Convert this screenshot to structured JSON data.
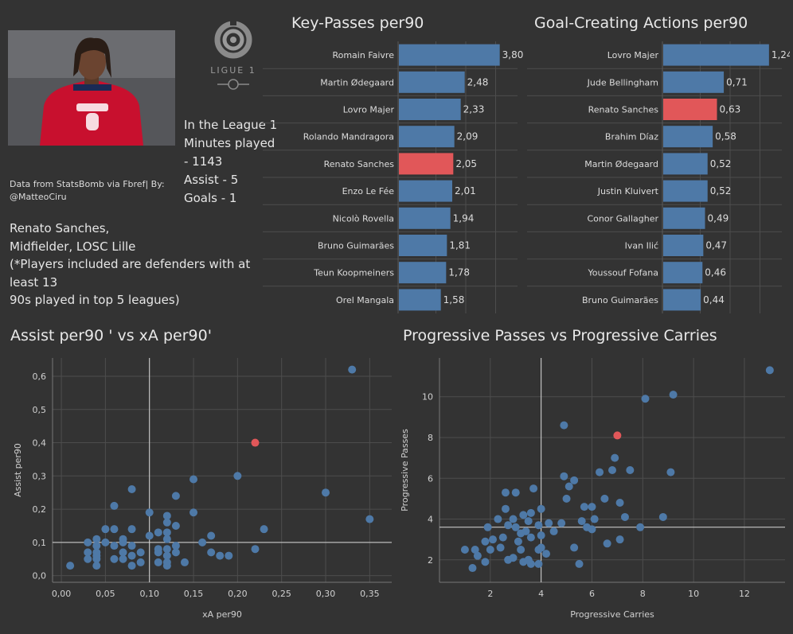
{
  "credit": "Data from StatsBomb via Fbref| By: @MatteoCiru",
  "stats_lines": [
    "In the League 1",
    "Minutes played",
    "- 1143",
    "Assist - 5",
    "Goals - 1"
  ],
  "description_lines": [
    "Renato Sanches,",
    "Midfielder, LOSC Lille",
    "(*Players included are defenders with at least 13",
    "90s played in top 5 leagues)"
  ],
  "logo": {
    "text": "LIGUE 1",
    "icon": "ligue1-logo-icon"
  },
  "colors": {
    "background": "#333333",
    "bar": "#4e79a7",
    "highlight": "#e15759",
    "grid": "#4d4d4d",
    "refline": "#d9d9d9"
  },
  "chart_data": [
    {
      "type": "bar",
      "orientation": "horizontal",
      "title": "Key-Passes per90",
      "categories": [
        "Romain Faivre",
        "Martin Ødegaard",
        "Lovro Majer",
        "Rolando Mandragora",
        "Renato Sanches",
        "Enzo Le Fée",
        "Nicolò Rovella",
        "Bruno Guimarães",
        "Teun Koopmeiners",
        "Orel Mangala"
      ],
      "values": [
        3.8,
        2.48,
        2.33,
        2.09,
        2.05,
        2.01,
        1.94,
        1.81,
        1.78,
        1.58
      ],
      "value_labels": [
        "3,80",
        "2,48",
        "2,33",
        "2,09",
        "2,05",
        "2,01",
        "1,94",
        "1,81",
        "1,78",
        "1,58"
      ],
      "highlight": "Renato Sanches",
      "xlim": [
        0,
        4.5
      ]
    },
    {
      "type": "bar",
      "orientation": "horizontal",
      "title": "Goal-Creating Actions per90",
      "categories": [
        "Lovro Majer",
        "Jude Bellingham",
        "Renato Sanches",
        "Brahim Díaz",
        "Martin Ødegaard",
        "Justin Kluivert",
        "Conor Gallagher",
        "Ivan Ilić",
        "Youssouf Fofana",
        "Bruno Guimarães"
      ],
      "values": [
        1.24,
        0.71,
        0.63,
        0.58,
        0.52,
        0.52,
        0.49,
        0.47,
        0.46,
        0.44
      ],
      "value_labels": [
        "1,24",
        "0,71",
        "0,63",
        "0,58",
        "0,52",
        "0,52",
        "0,49",
        "0,47",
        "0,46",
        "0,44"
      ],
      "highlight": "Renato Sanches",
      "xlim": [
        0,
        1.4
      ]
    },
    {
      "type": "scatter",
      "title": "Assist per90 ' vs xA per90'",
      "xlabel": "xA per90",
      "ylabel": "Assist per90",
      "xlim": [
        -0.01,
        0.375
      ],
      "ylim": [
        -0.02,
        0.655
      ],
      "xticks": [
        0,
        0.05,
        0.1,
        0.15,
        0.2,
        0.25,
        0.3,
        0.35
      ],
      "xtick_labels": [
        "0,00",
        "0,05",
        "0,10",
        "0,15",
        "0,20",
        "0,25",
        "0,30",
        "0,35"
      ],
      "yticks": [
        0,
        0.1,
        0.2,
        0.3,
        0.4,
        0.5,
        0.6
      ],
      "ytick_labels": [
        "0,0",
        "0,1",
        "0,2",
        "0,3",
        "0,4",
        "0,5",
        "0,6"
      ],
      "ref_x": 0.1,
      "ref_y": 0.1,
      "points": [
        [
          0.33,
          0.62
        ],
        [
          0.2,
          0.3
        ],
        [
          0.3,
          0.25
        ],
        [
          0.35,
          0.17
        ],
        [
          0.15,
          0.29
        ],
        [
          0.08,
          0.26
        ],
        [
          0.13,
          0.24
        ],
        [
          0.06,
          0.21
        ],
        [
          0.1,
          0.19
        ],
        [
          0.15,
          0.19
        ],
        [
          0.12,
          0.18
        ],
        [
          0.12,
          0.16
        ],
        [
          0.13,
          0.15
        ],
        [
          0.05,
          0.14
        ],
        [
          0.06,
          0.14
        ],
        [
          0.08,
          0.14
        ],
        [
          0.23,
          0.14
        ],
        [
          0.11,
          0.13
        ],
        [
          0.12,
          0.13
        ],
        [
          0.1,
          0.12
        ],
        [
          0.17,
          0.12
        ],
        [
          0.04,
          0.11
        ],
        [
          0.07,
          0.11
        ],
        [
          0.12,
          0.11
        ],
        [
          0.03,
          0.1
        ],
        [
          0.05,
          0.1
        ],
        [
          0.07,
          0.1
        ],
        [
          0.16,
          0.1
        ],
        [
          0.13,
          0.09
        ],
        [
          0.04,
          0.09
        ],
        [
          0.06,
          0.09
        ],
        [
          0.08,
          0.09
        ],
        [
          0.11,
          0.08
        ],
        [
          0.12,
          0.08
        ],
        [
          0.22,
          0.08
        ],
        [
          0.03,
          0.07
        ],
        [
          0.04,
          0.07
        ],
        [
          0.07,
          0.07
        ],
        [
          0.09,
          0.07
        ],
        [
          0.11,
          0.07
        ],
        [
          0.13,
          0.07
        ],
        [
          0.17,
          0.07
        ],
        [
          0.04,
          0.06
        ],
        [
          0.08,
          0.06
        ],
        [
          0.12,
          0.06
        ],
        [
          0.18,
          0.06
        ],
        [
          0.19,
          0.06
        ],
        [
          0.03,
          0.05
        ],
        [
          0.04,
          0.05
        ],
        [
          0.06,
          0.05
        ],
        [
          0.07,
          0.05
        ],
        [
          0.09,
          0.04
        ],
        [
          0.11,
          0.04
        ],
        [
          0.12,
          0.04
        ],
        [
          0.14,
          0.04
        ],
        [
          0.04,
          0.03
        ],
        [
          0.08,
          0.03
        ],
        [
          0.01,
          0.03
        ],
        [
          0.12,
          0.03
        ]
      ],
      "highlight_point": [
        0.22,
        0.4
      ]
    },
    {
      "type": "scatter",
      "title": "Progressive Passes vs Progressive Carries",
      "xlabel": "Progressive Carries",
      "ylabel": "Progressive Passes",
      "xlim": [
        0,
        13.6
      ],
      "ylim": [
        0.9,
        11.9
      ],
      "xticks": [
        2,
        4,
        6,
        8,
        10,
        12
      ],
      "xtick_labels": [
        "2",
        "4",
        "6",
        "8",
        "10",
        "12"
      ],
      "yticks": [
        2,
        4,
        6,
        8,
        10
      ],
      "ytick_labels": [
        "2",
        "4",
        "6",
        "8",
        "10"
      ],
      "ref_x": 4,
      "ref_y": 3.6,
      "points": [
        [
          13.0,
          11.3
        ],
        [
          9.2,
          10.1
        ],
        [
          8.1,
          9.9
        ],
        [
          4.9,
          8.6
        ],
        [
          6.9,
          7.0
        ],
        [
          7.5,
          6.4
        ],
        [
          9.1,
          6.3
        ],
        [
          6.3,
          6.3
        ],
        [
          6.8,
          6.4
        ],
        [
          4.9,
          6.1
        ],
        [
          5.3,
          5.9
        ],
        [
          5.1,
          5.6
        ],
        [
          3.7,
          5.5
        ],
        [
          2.6,
          5.3
        ],
        [
          3.0,
          5.3
        ],
        [
          5.0,
          5.0
        ],
        [
          6.5,
          5.0
        ],
        [
          7.1,
          4.8
        ],
        [
          5.7,
          4.6
        ],
        [
          6.0,
          4.6
        ],
        [
          2.6,
          4.5
        ],
        [
          4.0,
          4.5
        ],
        [
          3.3,
          4.2
        ],
        [
          3.6,
          4.3
        ],
        [
          7.3,
          4.1
        ],
        [
          8.8,
          4.1
        ],
        [
          2.3,
          4.0
        ],
        [
          6.1,
          4.0
        ],
        [
          2.9,
          4.0
        ],
        [
          3.5,
          3.9
        ],
        [
          4.3,
          3.8
        ],
        [
          5.6,
          3.9
        ],
        [
          1.9,
          3.6
        ],
        [
          2.7,
          3.7
        ],
        [
          3.0,
          3.6
        ],
        [
          3.9,
          3.7
        ],
        [
          4.8,
          3.8
        ],
        [
          5.8,
          3.6
        ],
        [
          6.0,
          3.5
        ],
        [
          7.9,
          3.6
        ],
        [
          3.2,
          3.3
        ],
        [
          3.4,
          3.4
        ],
        [
          4.5,
          3.4
        ],
        [
          2.5,
          3.1
        ],
        [
          3.6,
          3.1
        ],
        [
          4.0,
          3.2
        ],
        [
          1.8,
          2.9
        ],
        [
          2.1,
          3.0
        ],
        [
          3.1,
          2.9
        ],
        [
          6.6,
          2.8
        ],
        [
          7.1,
          3.0
        ],
        [
          2.4,
          2.6
        ],
        [
          3.2,
          2.5
        ],
        [
          3.9,
          2.5
        ],
        [
          1.0,
          2.5
        ],
        [
          1.4,
          2.5
        ],
        [
          2.0,
          2.5
        ],
        [
          5.3,
          2.6
        ],
        [
          4.2,
          2.3
        ],
        [
          1.5,
          2.2
        ],
        [
          2.9,
          2.1
        ],
        [
          3.5,
          2.0
        ],
        [
          1.8,
          1.9
        ],
        [
          2.7,
          2.0
        ],
        [
          3.6,
          1.8
        ],
        [
          3.9,
          1.8
        ],
        [
          5.5,
          1.8
        ],
        [
          1.3,
          1.6
        ],
        [
          4.0,
          2.6
        ],
        [
          3.3,
          1.9
        ]
      ],
      "highlight_point": [
        7.0,
        8.1
      ]
    }
  ]
}
